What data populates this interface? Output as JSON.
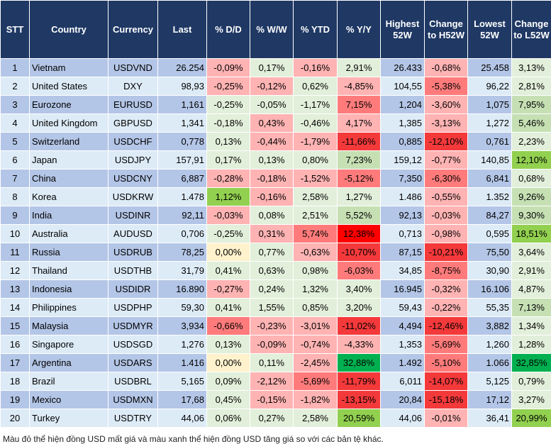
{
  "headers": [
    "STT",
    "Country",
    "Currency",
    "Last",
    "% D/D",
    "% W/W",
    "% YTD",
    "% Y/Y",
    "Highest 52W",
    "Change to H52W",
    "Lowest 52W",
    "Change to L52W"
  ],
  "colors": {
    "header_bg": "#1f3864",
    "row_odd": "#b4c6e7",
    "row_even": "#ddebf7",
    "lr": "#ffb3b3",
    "lg": "#e2efda",
    "mr": "#ff7b7b",
    "r2": "#f4393b",
    "rr": "#ff0000",
    "mg": "#c6e0b4",
    "g": "#92d050",
    "dg": "#00b050",
    "y": "#fff2cc"
  },
  "rows": [
    {
      "stt": "1",
      "country": "Vietnam",
      "currency": "USDVND",
      "last": "26.254",
      "dd": "-0,09%",
      "ww": "0,17%",
      "ytd": "-0,16%",
      "yy": "2,91%",
      "high": "26.433",
      "chh": "-0,68%",
      "low": "25.458",
      "chl": "3,13%",
      "col": [
        "lr",
        "lg",
        "lr",
        "lg",
        "lr",
        "lg"
      ]
    },
    {
      "stt": "2",
      "country": "United States",
      "currency": "DXY",
      "last": "98,93",
      "dd": "-0,25%",
      "ww": "-0,12%",
      "ytd": "0,62%",
      "yy": "-4,85%",
      "high": "104,55",
      "chh": "-5,38%",
      "low": "96,22",
      "chl": "2,81%",
      "col": [
        "lr",
        "lr",
        "lg",
        "lr",
        "mr",
        "lg"
      ]
    },
    {
      "stt": "3",
      "country": "Eurozone",
      "currency": "EURUSD",
      "last": "1,161",
      "dd": "-0,25%",
      "ww": "-0,05%",
      "ytd": "-1,17%",
      "yy": "7,15%",
      "high": "1,204",
      "chh": "-3,60%",
      "low": "1,075",
      "chl": "7,95%",
      "col": [
        "lg",
        "lg",
        "lg",
        "mr",
        "lr",
        "mg"
      ]
    },
    {
      "stt": "4",
      "country": "United Kingdom",
      "currency": "GBPUSD",
      "last": "1,341",
      "dd": "-0,18%",
      "ww": "0,43%",
      "ytd": "-0,46%",
      "yy": "4,17%",
      "high": "1,385",
      "chh": "-3,13%",
      "low": "1,272",
      "chl": "5,46%",
      "col": [
        "lg",
        "lr",
        "lg",
        "lr",
        "lr",
        "mg"
      ]
    },
    {
      "stt": "5",
      "country": "Switzerland",
      "currency": "USDCHF",
      "last": "0,778",
      "dd": "0,13%",
      "ww": "-0,44%",
      "ytd": "-1,79%",
      "yy": "-11,66%",
      "high": "0,885",
      "chh": "-12,10%",
      "low": "0,761",
      "chl": "2,23%",
      "col": [
        "lg",
        "lr",
        "lr",
        "r2",
        "r2",
        "lg"
      ]
    },
    {
      "stt": "6",
      "country": "Japan",
      "currency": "USDJPY",
      "last": "157,91",
      "dd": "0,17%",
      "ww": "0,13%",
      "ytd": "0,80%",
      "yy": "7,23%",
      "high": "159,12",
      "chh": "-0,77%",
      "low": "140,85",
      "chl": "12,10%",
      "col": [
        "lg",
        "lg",
        "lg",
        "mg",
        "lr",
        "g"
      ]
    },
    {
      "stt": "7",
      "country": "China",
      "currency": "USDCNY",
      "last": "6,887",
      "dd": "-0,28%",
      "ww": "-0,18%",
      "ytd": "-1,52%",
      "yy": "-5,12%",
      "high": "7,350",
      "chh": "-6,30%",
      "low": "6,841",
      "chl": "0,68%",
      "col": [
        "lr",
        "lr",
        "lr",
        "mr",
        "mr",
        "lg"
      ]
    },
    {
      "stt": "8",
      "country": "Korea",
      "currency": "USDKRW",
      "last": "1.478",
      "dd": "1,12%",
      "ww": "-0,16%",
      "ytd": "2,58%",
      "yy": "1,27%",
      "high": "1.486",
      "chh": "-0,55%",
      "low": "1.352",
      "chl": "9,26%",
      "col": [
        "g",
        "lr",
        "lg",
        "lg",
        "lr",
        "mg"
      ]
    },
    {
      "stt": "9",
      "country": "India",
      "currency": "USDINR",
      "last": "92,11",
      "dd": "-0,03%",
      "ww": "0,08%",
      "ytd": "2,51%",
      "yy": "5,52%",
      "high": "92,13",
      "chh": "-0,03%",
      "low": "84,27",
      "chl": "9,30%",
      "col": [
        "lr",
        "lg",
        "lg",
        "mg",
        "lr",
        "mg"
      ]
    },
    {
      "stt": "10",
      "country": "Australia",
      "currency": "AUDUSD",
      "last": "0,706",
      "dd": "-0,25%",
      "ww": "0,31%",
      "ytd": "5,74%",
      "yy": "12,38%",
      "high": "0,713",
      "chh": "-0,98%",
      "low": "0,595",
      "chl": "18,51%",
      "col": [
        "lg",
        "lr",
        "mr",
        "rr",
        "lr",
        "g"
      ]
    },
    {
      "stt": "11",
      "country": "Russia",
      "currency": "USDRUB",
      "last": "78,25",
      "dd": "0,00%",
      "ww": "0,77%",
      "ytd": "-0,63%",
      "yy": "-10,70%",
      "high": "87,15",
      "chh": "-10,21%",
      "low": "75,50",
      "chl": "3,64%",
      "col": [
        "y",
        "lg",
        "lr",
        "r2",
        "r2",
        "lg"
      ]
    },
    {
      "stt": "12",
      "country": "Thailand",
      "currency": "USDTHB",
      "last": "31,79",
      "dd": "0,41%",
      "ww": "0,63%",
      "ytd": "0,98%",
      "yy": "-6,03%",
      "high": "34,85",
      "chh": "-8,75%",
      "low": "30,90",
      "chl": "2,91%",
      "col": [
        "lg",
        "lg",
        "lg",
        "mr",
        "mr",
        "lg"
      ]
    },
    {
      "stt": "13",
      "country": "Indonesia",
      "currency": "USDIDR",
      "last": "16.890",
      "dd": "-0,27%",
      "ww": "0,24%",
      "ytd": "1,32%",
      "yy": "3,40%",
      "high": "16.945",
      "chh": "-0,32%",
      "low": "16.106",
      "chl": "4,87%",
      "col": [
        "lr",
        "lg",
        "lg",
        "lg",
        "lr",
        "lg"
      ]
    },
    {
      "stt": "14",
      "country": "Philippines",
      "currency": "USDPHP",
      "last": "59,30",
      "dd": "0,41%",
      "ww": "1,55%",
      "ytd": "0,85%",
      "yy": "3,20%",
      "high": "59,43",
      "chh": "-0,22%",
      "low": "55,35",
      "chl": "7,13%",
      "col": [
        "lg",
        "lg",
        "lg",
        "lg",
        "lr",
        "mg"
      ]
    },
    {
      "stt": "15",
      "country": "Malaysia",
      "currency": "USDMYR",
      "last": "3,934",
      "dd": "-0,66%",
      "ww": "-0,23%",
      "ytd": "-3,01%",
      "yy": "-11,02%",
      "high": "4,494",
      "chh": "-12,46%",
      "low": "3,882",
      "chl": "1,34%",
      "col": [
        "mr",
        "lr",
        "lr",
        "r2",
        "r2",
        "lg"
      ]
    },
    {
      "stt": "16",
      "country": "Singapore",
      "currency": "USDSGD",
      "last": "1,276",
      "dd": "0,13%",
      "ww": "-0,09%",
      "ytd": "-0,74%",
      "yy": "-4,33%",
      "high": "1,353",
      "chh": "-5,69%",
      "low": "1,260",
      "chl": "1,28%",
      "col": [
        "lg",
        "lr",
        "lr",
        "lr",
        "mr",
        "lg"
      ]
    },
    {
      "stt": "17",
      "country": "Argentina",
      "currency": "USDARS",
      "last": "1.416",
      "dd": "0,00%",
      "ww": "0,11%",
      "ytd": "-2,45%",
      "yy": "32,88%",
      "high": "1.492",
      "chh": "-5,10%",
      "low": "1.066",
      "chl": "32,85%",
      "col": [
        "y",
        "lg",
        "lr",
        "dg",
        "mr",
        "dg"
      ]
    },
    {
      "stt": "18",
      "country": "Brazil",
      "currency": "USDBRL",
      "last": "5,165",
      "dd": "0,09%",
      "ww": "-2,12%",
      "ytd": "-5,69%",
      "yy": "-11,79%",
      "high": "6,011",
      "chh": "-14,07%",
      "low": "5,125",
      "chl": "0,79%",
      "col": [
        "lg",
        "lr",
        "mr",
        "r2",
        "r2",
        "lg"
      ]
    },
    {
      "stt": "19",
      "country": "Mexico",
      "currency": "USDMXN",
      "last": "17,68",
      "dd": "0,45%",
      "ww": "-0,15%",
      "ytd": "-1,82%",
      "yy": "-13,15%",
      "high": "20,84",
      "chh": "-15,18%",
      "low": "17,12",
      "chl": "3,27%",
      "col": [
        "lg",
        "lr",
        "lr",
        "r2",
        "r2",
        "lg"
      ]
    },
    {
      "stt": "20",
      "country": "Turkey",
      "currency": "USDTRY",
      "last": "44,06",
      "dd": "0,06%",
      "ww": "0,27%",
      "ytd": "2,58%",
      "yy": "20,59%",
      "high": "44,06",
      "chh": "-0,01%",
      "low": "36,41",
      "chl": "20,99%",
      "col": [
        "lg",
        "lg",
        "lg",
        "g",
        "lr",
        "g"
      ]
    }
  ],
  "caption": "Màu đỏ thể hiện đồng USD mất giá và màu xanh thể hiện đồng USD tăng giá so với các bản tệ khác."
}
